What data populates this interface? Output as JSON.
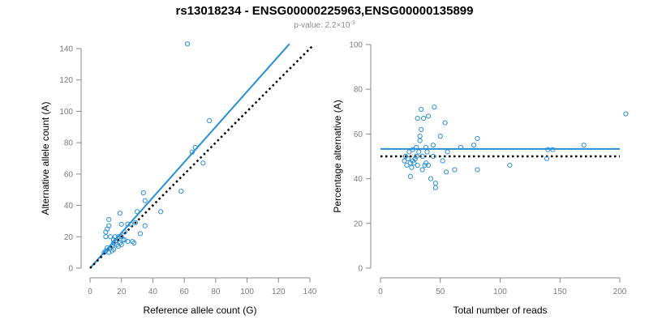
{
  "figure": {
    "title": "rs13018234 - ENSG00000225963,ENSG00000135899",
    "subtitle_prefix": "p-value: 2.2×10",
    "subtitle_exponent": "-3"
  },
  "colors": {
    "points": "#2a8fd4",
    "fit_line": "#2a8fd4",
    "reference_line": "#000000",
    "axis": "#888888",
    "tick_text": "#7a7a7a"
  },
  "chart_data": [
    {
      "type": "scatter",
      "name": "allele-count-scatter",
      "xlabel": "Reference allele count (G)",
      "ylabel": "Alternative allele count (A)",
      "xlim": [
        0,
        140
      ],
      "ylim": [
        0,
        140
      ],
      "xticks": [
        0,
        20,
        40,
        60,
        80,
        100,
        120,
        140
      ],
      "yticks": [
        0,
        20,
        40,
        60,
        80,
        100,
        120,
        140
      ],
      "points": [
        [
          62,
          143
        ],
        [
          76,
          94
        ],
        [
          67,
          77
        ],
        [
          65,
          74
        ],
        [
          72,
          67
        ],
        [
          58,
          49
        ],
        [
          45,
          36
        ],
        [
          34,
          48
        ],
        [
          35,
          43
        ],
        [
          35,
          27
        ],
        [
          30,
          36
        ],
        [
          29,
          29
        ],
        [
          26,
          28
        ],
        [
          24,
          28
        ],
        [
          22,
          23
        ],
        [
          24,
          17
        ],
        [
          27,
          17
        ],
        [
          28,
          16
        ],
        [
          19,
          35
        ],
        [
          20,
          28
        ],
        [
          18,
          20
        ],
        [
          20,
          20
        ],
        [
          21,
          18
        ],
        [
          19,
          16
        ],
        [
          17,
          15
        ],
        [
          16,
          17
        ],
        [
          22,
          18
        ],
        [
          12,
          31
        ],
        [
          12,
          27
        ],
        [
          11,
          25
        ],
        [
          10,
          23
        ],
        [
          10,
          20
        ],
        [
          13,
          20
        ],
        [
          15,
          18
        ],
        [
          16,
          20
        ],
        [
          14,
          14
        ],
        [
          13,
          13
        ],
        [
          15,
          12
        ],
        [
          11,
          13
        ],
        [
          12,
          10
        ],
        [
          10,
          11
        ],
        [
          9,
          10
        ],
        [
          14,
          11
        ],
        [
          15,
          16
        ],
        [
          18,
          14
        ],
        [
          20,
          15
        ],
        [
          32,
          22
        ]
      ],
      "fit_line": {
        "from": [
          0,
          0
        ],
        "to": [
          127,
          143
        ]
      },
      "reference_line": {
        "from": [
          0,
          0
        ],
        "to": [
          142,
          142
        ]
      }
    },
    {
      "type": "scatter",
      "name": "percentage-scatter",
      "xlabel": "Total number of reads",
      "ylabel": "Percentage alternative (A)",
      "xlim": [
        0,
        200
      ],
      "ylim": [
        0,
        100
      ],
      "xticks": [
        0,
        50,
        100,
        150,
        200
      ],
      "yticks": [
        0,
        20,
        40,
        60,
        80,
        100
      ],
      "points": [
        [
          205,
          69
        ],
        [
          170,
          55
        ],
        [
          144,
          53
        ],
        [
          140,
          53
        ],
        [
          139,
          49
        ],
        [
          108,
          46
        ],
        [
          81,
          58
        ],
        [
          81,
          44
        ],
        [
          78,
          55
        ],
        [
          67,
          54
        ],
        [
          62,
          44
        ],
        [
          56,
          52
        ],
        [
          54,
          65
        ],
        [
          55,
          43
        ],
        [
          50,
          59
        ],
        [
          52,
          48
        ],
        [
          45,
          72
        ],
        [
          44,
          55
        ],
        [
          46,
          38
        ],
        [
          46,
          36
        ],
        [
          42,
          40
        ],
        [
          40,
          68
        ],
        [
          39,
          52
        ],
        [
          38,
          54
        ],
        [
          38,
          47
        ],
        [
          37,
          46
        ],
        [
          36,
          67
        ],
        [
          35,
          44
        ],
        [
          35,
          50
        ],
        [
          34,
          71
        ],
        [
          34,
          62
        ],
        [
          33,
          59
        ],
        [
          33,
          57
        ],
        [
          32,
          52
        ],
        [
          31,
          67
        ],
        [
          31,
          46
        ],
        [
          30,
          54
        ],
        [
          30,
          50
        ],
        [
          29,
          49
        ],
        [
          28,
          47
        ],
        [
          27,
          53
        ],
        [
          27,
          48
        ],
        [
          26,
          45
        ],
        [
          25,
          47
        ],
        [
          25,
          41
        ],
        [
          24,
          52
        ],
        [
          23,
          49
        ],
        [
          22,
          46
        ],
        [
          21,
          50
        ],
        [
          20,
          48
        ],
        [
          44,
          50
        ],
        [
          40,
          46
        ]
      ],
      "fit_line": {
        "y": 53.3
      },
      "reference_line": {
        "y": 50
      }
    }
  ]
}
